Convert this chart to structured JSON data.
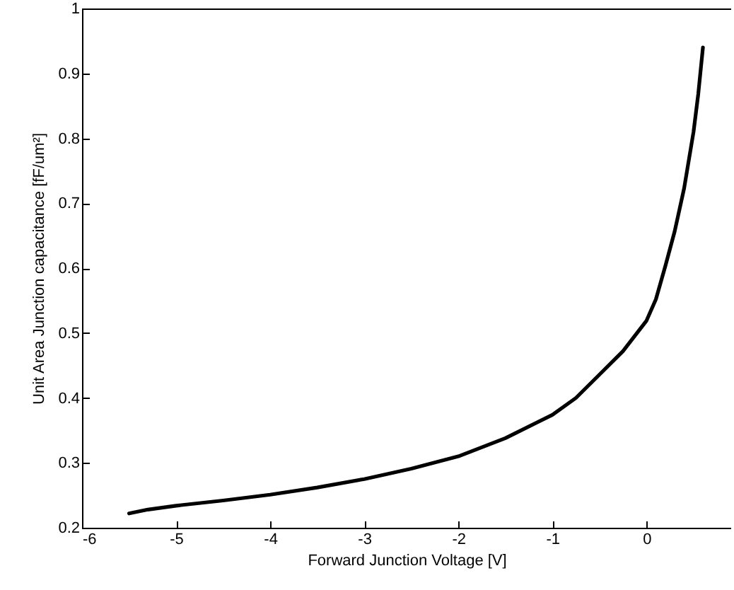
{
  "chart_data": {
    "type": "line",
    "xlabel": "Forward Junction Voltage [V]",
    "ylabel": "Unit Area Junction capacitance [fF/um²]",
    "x": [
      -5.5,
      -5.3,
      -5,
      -4.5,
      -4,
      -3.5,
      -3,
      -2.5,
      -2,
      -1.5,
      -1,
      -0.75,
      -0.5,
      -0.25,
      0,
      0.1,
      0.2,
      0.3,
      0.4,
      0.5,
      0.55,
      0.6
    ],
    "series": [
      {
        "color": "#000000",
        "values": [
          0.222,
          0.228,
          0.234,
          0.242,
          0.251,
          0.262,
          0.275,
          0.291,
          0.31,
          0.338,
          0.374,
          0.4,
          0.436,
          0.472,
          0.519,
          0.552,
          0.603,
          0.657,
          0.723,
          0.81,
          0.868,
          0.94
        ]
      }
    ],
    "xlim": [
      -6,
      0.9
    ],
    "xticks": [
      -6,
      -5,
      -4,
      -3,
      -2,
      -1,
      0
    ],
    "ylim": [
      0.2,
      1
    ],
    "yticks": [
      0.2,
      0.3,
      0.4,
      0.5,
      0.6,
      0.7,
      0.8,
      0.9,
      1
    ],
    "grid": false,
    "marker": "none",
    "line_style": "solid"
  }
}
